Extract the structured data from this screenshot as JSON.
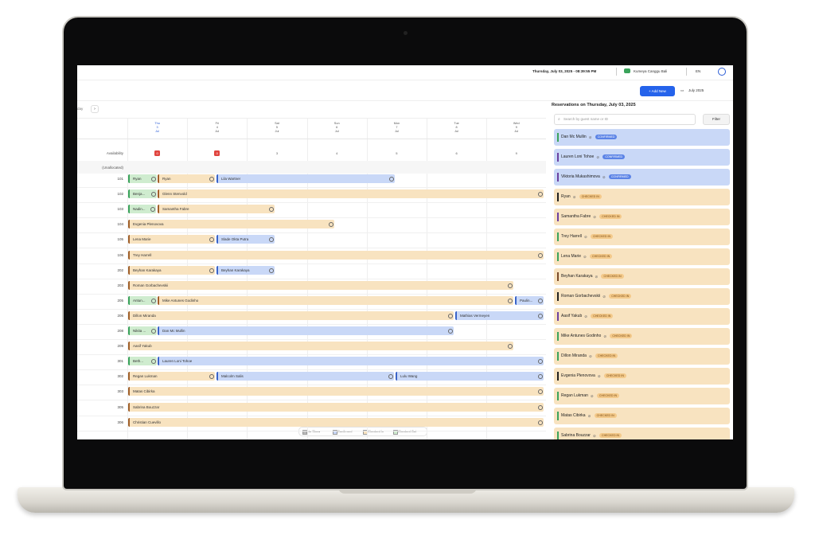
{
  "topbar": {
    "datetime": "Thursday, July 03, 2025 - 08:39:55 PM",
    "property": "Kumeya Canggu Bali",
    "language": "EN"
  },
  "toolbar": {
    "add_button": "+ Add New",
    "month": "July 2025",
    "nav": "day"
  },
  "calendar": {
    "days": [
      {
        "dow": "Thu",
        "date": "3",
        "month": "Jul"
      },
      {
        "dow": "Fri",
        "date": "4",
        "month": "Jul"
      },
      {
        "dow": "Sat",
        "date": "5",
        "month": "Jul"
      },
      {
        "dow": "Sun",
        "date": "6",
        "month": "Jul"
      },
      {
        "dow": "Mon",
        "date": "7",
        "month": "Jul"
      },
      {
        "dow": "Tue",
        "date": "8",
        "month": "Jul"
      },
      {
        "dow": "Wed",
        "date": "9",
        "month": "Jul"
      }
    ],
    "availability_label": "Availability",
    "availability": [
      0,
      0,
      3,
      4,
      5,
      6,
      9
    ],
    "unallocated_label": "(Unallocated)",
    "rooms": [
      {
        "room": "101",
        "bookings": [
          {
            "guest": "Ryan",
            "color": "#cfeccf"
          },
          {
            "guest": "Ryan",
            "color": "#f8e3c0"
          },
          {
            "guest": "Lila Wartner",
            "color": "#c9d8f7"
          }
        ]
      },
      {
        "room": "102",
        "bookings": [
          {
            "guest": "Benja...",
            "color": "#cfeccf"
          },
          {
            "guest": "Glenn Stenvold",
            "color": "#f8e3c0"
          }
        ]
      },
      {
        "room": "103",
        "bookings": [
          {
            "guest": "Nadin...",
            "color": "#cfeccf"
          },
          {
            "guest": "Samantha Fabre",
            "color": "#f8e3c0"
          }
        ]
      },
      {
        "room": "104",
        "bookings": [
          {
            "guest": "Evgenia Plenovova",
            "color": "#f8e3c0"
          }
        ]
      },
      {
        "room": "105",
        "bookings": [
          {
            "guest": "Lena Marie",
            "color": "#f8e3c0"
          },
          {
            "guest": "Slade Okta Putra",
            "color": "#c9d8f7"
          }
        ]
      },
      {
        "room": "106",
        "bookings": [
          {
            "guest": "Trey Harrell",
            "color": "#f8e3c0"
          }
        ]
      },
      {
        "room": "202",
        "bookings": [
          {
            "guest": "Beyhan Karakaya",
            "color": "#f8e3c0"
          },
          {
            "guest": "Beyhan Karakaya",
            "color": "#c9d8f7"
          }
        ]
      },
      {
        "room": "203",
        "bookings": [
          {
            "guest": "Roman Gorbachevskii",
            "color": "#f8e3c0"
          }
        ]
      },
      {
        "room": "205",
        "bookings": [
          {
            "guest": "Antun...",
            "color": "#cfeccf"
          },
          {
            "guest": "Mike Antunes Godinho",
            "color": "#f8e3c0"
          },
          {
            "guest": "Paulin...",
            "color": "#c9d8f7"
          }
        ]
      },
      {
        "room": "206",
        "bookings": [
          {
            "guest": "Dillon Miranda",
            "color": "#f8e3c0"
          },
          {
            "guest": "Mathias Vermeyen",
            "color": "#c9d8f7"
          }
        ]
      },
      {
        "room": "208",
        "bookings": [
          {
            "guest": "Nikita ...",
            "color": "#cfeccf"
          },
          {
            "guest": "Dan Mc Mullin",
            "color": "#c9d8f7"
          }
        ]
      },
      {
        "room": "209",
        "bookings": [
          {
            "guest": "Aasif Yakub",
            "color": "#f8e3c0"
          }
        ]
      },
      {
        "room": "301",
        "bookings": [
          {
            "guest": "Beth...",
            "color": "#cfeccf"
          },
          {
            "guest": "Lauren Loni Tohoe",
            "color": "#c9d8f7"
          }
        ]
      },
      {
        "room": "302",
        "bookings": [
          {
            "guest": "Regan Lukman",
            "color": "#f8e3c0"
          },
          {
            "guest": "Malcolm Salis",
            "color": "#c9d8f7"
          },
          {
            "guest": "Lulu Wang",
            "color": "#c9d8f7"
          }
        ]
      },
      {
        "room": "303",
        "bookings": [
          {
            "guest": "Matas Cibirka",
            "color": "#f8e3c0"
          }
        ]
      },
      {
        "room": "305",
        "bookings": [
          {
            "guest": "Sabrina Bouzzar",
            "color": "#f8e3c0"
          }
        ]
      },
      {
        "room": "306",
        "bookings": [
          {
            "guest": "Christian Cuevillo",
            "color": "#f8e3c0"
          }
        ]
      }
    ],
    "legend": [
      "No Show",
      "Confirmed",
      "Checked In",
      "Checked Out"
    ]
  },
  "panel": {
    "title": "Reservations on Thursday, July 03, 2025",
    "search_placeholder": "Search by guest name or ID",
    "filter": "Filter",
    "reservations": [
      {
        "guest": "Dan Mc Mullin",
        "status": "CONFIRMED",
        "stripe": "#3aa35b"
      },
      {
        "guest": "Lauren Loni Tohoe",
        "status": "CONFIRMED",
        "stripe": "#6b3fa0"
      },
      {
        "guest": "Viktoria Mukashimova",
        "status": "CONFIRMED",
        "stripe": "#6b3fa0"
      },
      {
        "guest": "Ryan",
        "status": "CHECKED IN",
        "stripe": "#222222"
      },
      {
        "guest": "Samantha Fabre",
        "status": "CHECKED IN",
        "stripe": "#6b3fa0"
      },
      {
        "guest": "Trey Harrell",
        "status": "CHECKED IN",
        "stripe": "#3aa35b"
      },
      {
        "guest": "Lena Marie",
        "status": "CHECKED IN",
        "stripe": "#3aa35b"
      },
      {
        "guest": "Beyhan Karakaya",
        "status": "CHECKED IN",
        "stripe": "#7a4a2a"
      },
      {
        "guest": "Roman Gorbachevskii",
        "status": "CHECKED IN",
        "stripe": "#222222"
      },
      {
        "guest": "Aasif Yakub",
        "status": "CHECKED IN",
        "stripe": "#6b3fa0"
      },
      {
        "guest": "Mike Antunes Godinho",
        "status": "CHECKED IN",
        "stripe": "#3aa35b"
      },
      {
        "guest": "Dillon Miranda",
        "status": "CHECKED IN",
        "stripe": "#3aa35b"
      },
      {
        "guest": "Evgenia Plenovova",
        "status": "CHECKED IN",
        "stripe": "#222222"
      },
      {
        "guest": "Regan Lukman",
        "status": "CHECKED IN",
        "stripe": "#3aa35b"
      },
      {
        "guest": "Matas Cibirka",
        "status": "CHECKED IN",
        "stripe": "#3aa35b"
      },
      {
        "guest": "Sabrina Bouzzar",
        "status": "CHECKED IN",
        "stripe": "#3aa35b"
      }
    ]
  }
}
